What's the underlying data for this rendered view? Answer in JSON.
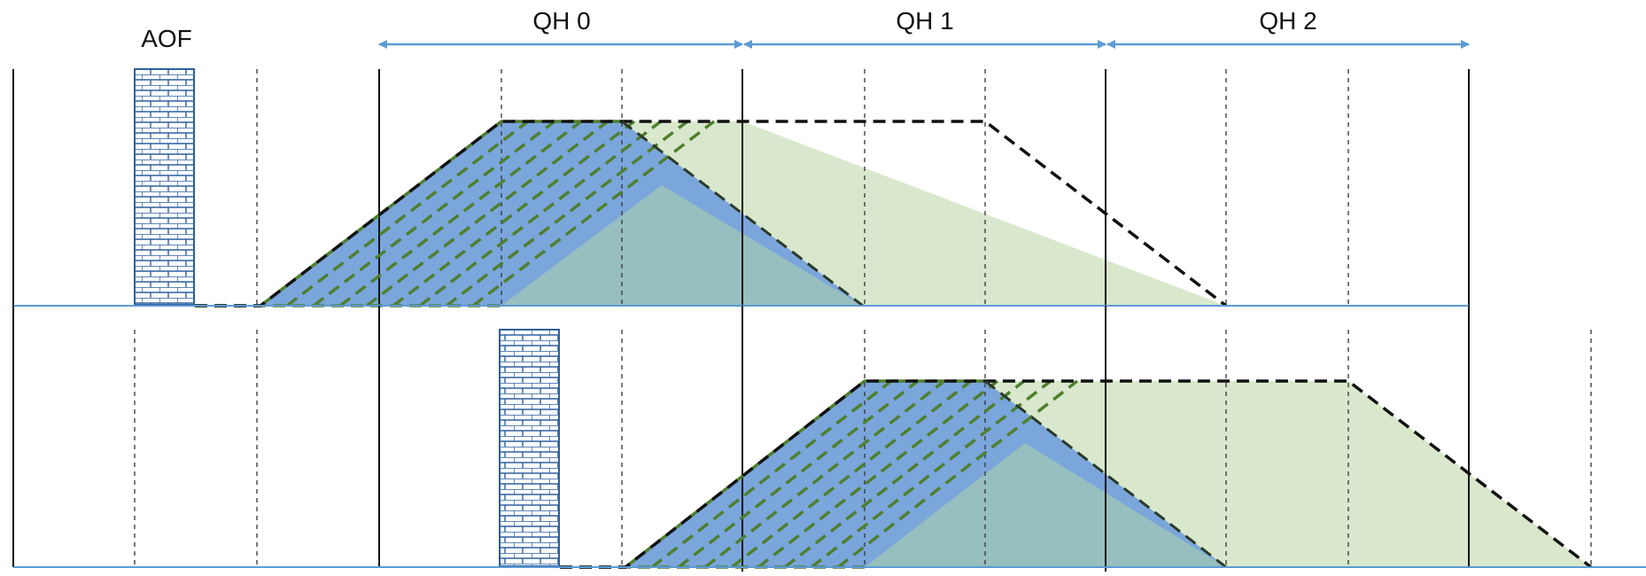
{
  "labels": {
    "aof": "AOF",
    "qh0": "QH 0",
    "qh1": "QH 1",
    "qh2": "QH 2"
  },
  "colors": {
    "blue_fill": "#7aa6dc",
    "green_fill": "#d9e8cc",
    "overlap_fill": "#97bfbf",
    "arrow": "#5b9bd5",
    "baseline": "#5b9bd5",
    "dash_black": "#111111",
    "dash_green": "#4f7f2f",
    "brick_stroke": "#2e5f9e"
  }
}
